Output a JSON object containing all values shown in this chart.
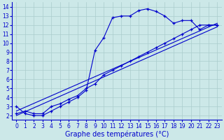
{
  "xlabel": "Graphe des températures (°C)",
  "bg_color": "#cce8e8",
  "line_color": "#0000cc",
  "grid_color": "#aacccc",
  "xlim": [
    -0.5,
    23.5
  ],
  "ylim": [
    1.5,
    14.5
  ],
  "xticks": [
    0,
    1,
    2,
    3,
    4,
    5,
    6,
    7,
    8,
    9,
    10,
    11,
    12,
    13,
    14,
    15,
    16,
    17,
    18,
    19,
    20,
    21,
    22,
    23
  ],
  "yticks": [
    2,
    3,
    4,
    5,
    6,
    7,
    8,
    9,
    10,
    11,
    12,
    13,
    14
  ],
  "curve_main_x": [
    0,
    1,
    2,
    3,
    4,
    5,
    6,
    7,
    8,
    9,
    10,
    11,
    12,
    13,
    14,
    15,
    16,
    17,
    18,
    19,
    20,
    21,
    22,
    23
  ],
  "curve_main_y": [
    3.0,
    2.2,
    2.0,
    2.0,
    2.5,
    3.0,
    3.5,
    4.0,
    4.8,
    9.2,
    10.6,
    12.8,
    13.0,
    13.0,
    13.6,
    13.8,
    13.5,
    13.0,
    12.2,
    12.5,
    12.5,
    11.5,
    12.0,
    12.0
  ],
  "curve_diag_x": [
    0,
    1,
    2,
    3,
    4,
    5,
    6,
    7,
    8,
    9,
    10,
    11,
    12,
    13,
    14,
    15,
    16,
    17,
    18,
    19,
    20,
    21,
    22,
    23
  ],
  "curve_diag_y": [
    2.2,
    2.5,
    2.2,
    2.2,
    3.0,
    3.3,
    3.8,
    4.2,
    5.0,
    5.5,
    6.5,
    7.0,
    7.5,
    8.0,
    8.5,
    9.0,
    9.5,
    10.0,
    10.5,
    11.0,
    11.5,
    12.0,
    12.0,
    12.0
  ],
  "line1_x": [
    0,
    23
  ],
  "line1_y": [
    2.0,
    11.8
  ],
  "line2_x": [
    0,
    23
  ],
  "line2_y": [
    2.5,
    12.2
  ],
  "xlabel_fontsize": 7,
  "tick_fontsize": 5.5
}
